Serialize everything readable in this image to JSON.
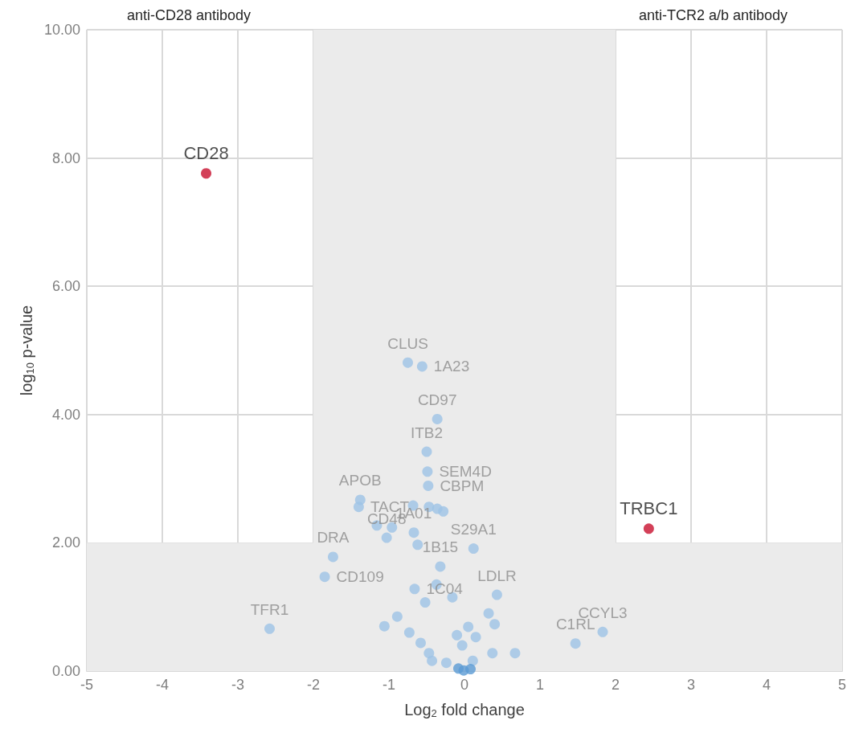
{
  "chart_data": {
    "type": "scatter",
    "xlabel": "Log$_{2}$ fold change",
    "ylabel": "log$_{10}$ p-value",
    "annotations": [
      "anti-CD28 antibody",
      "anti-TCR2 a/b antibody"
    ],
    "xlim": [
      -5,
      5
    ],
    "xticks": [
      -5,
      -4,
      -3,
      -2,
      -1,
      0,
      1,
      2,
      3,
      4,
      5
    ],
    "ylim": [
      0,
      10
    ],
    "yticks": [
      {
        "value": 0,
        "label": "0.00"
      },
      {
        "value": 2,
        "label": "2.00"
      },
      {
        "value": 4,
        "label": "4.00"
      },
      {
        "value": 6,
        "label": "6.00"
      },
      {
        "value": 8,
        "label": "8.00"
      },
      {
        "value": 10,
        "label": "10.00"
      }
    ],
    "grid": true,
    "marker": "circle",
    "bands": [
      {
        "axis": "x",
        "from": -2,
        "to": 2,
        "color": "#ebebeb"
      },
      {
        "axis": "y",
        "from": 0,
        "to": 2,
        "color": "#ebebeb"
      }
    ],
    "series": [
      {
        "color": "#9dc3e6",
        "x": [
          -0.75,
          -0.56,
          -0.36,
          -0.5,
          -0.49,
          -0.48,
          -1.38,
          -1.4,
          -0.68,
          -0.47,
          -0.36,
          -0.28,
          -1.16,
          -0.96,
          -0.69,
          -0.67,
          -1.03,
          -0.62,
          0.12,
          -1.74,
          -1.85,
          -2.58,
          -1.06,
          1.47,
          1.83,
          0.67,
          0.37,
          0.43,
          0.32,
          0.4,
          0.11,
          -0.43,
          -0.24,
          -0.47,
          -0.58,
          -0.73,
          -0.89,
          -0.32,
          -0.66,
          -0.52,
          -0.16,
          -0.37,
          -0.1,
          0.15,
          -0.03,
          0.05
        ],
        "values": [
          4.81,
          4.75,
          3.93,
          3.42,
          3.11,
          2.89,
          2.67,
          2.56,
          2.58,
          2.56,
          2.53,
          2.49,
          2.27,
          2.24,
          null,
          2.16,
          2.08,
          1.97,
          1.91,
          1.78,
          1.47,
          0.66,
          0.7,
          0.43,
          0.61,
          0.28,
          0.28,
          1.19,
          0.9,
          0.73,
          0.16,
          0.16,
          0.13,
          0.28,
          0.44,
          0.6,
          0.85,
          1.63,
          1.28,
          1.07,
          1.15,
          1.35,
          0.56,
          0.53,
          0.4,
          0.69
        ],
        "value_labels": [
          "CLUS",
          "1A23",
          "CD97",
          "ITB2",
          "SEM4D",
          "CBPM",
          "APOB",
          "TACT",
          null,
          null,
          null,
          null,
          null,
          null,
          null,
          "1A01",
          "CD48",
          null,
          "S29A1",
          "DRA",
          "CD109",
          "TFR1",
          null,
          "C1RL",
          "CCYL3",
          null,
          null,
          "LDLR",
          null,
          null,
          null,
          null,
          null,
          null,
          null,
          null,
          null,
          "1B15",
          "1C04",
          null,
          null,
          null,
          null,
          null,
          null,
          null
        ]
      },
      {
        "color": "#5b9bd5",
        "x": [
          -0.08,
          -0.01,
          0.08
        ],
        "values": [
          0.04,
          0.01,
          0.03
        ]
      },
      {
        "color": "#c8102e",
        "x": [
          -3.42,
          2.44
        ],
        "values": [
          7.76,
          2.22
        ],
        "value_labels": [
          "CD28",
          "TRBC1"
        ]
      }
    ]
  }
}
